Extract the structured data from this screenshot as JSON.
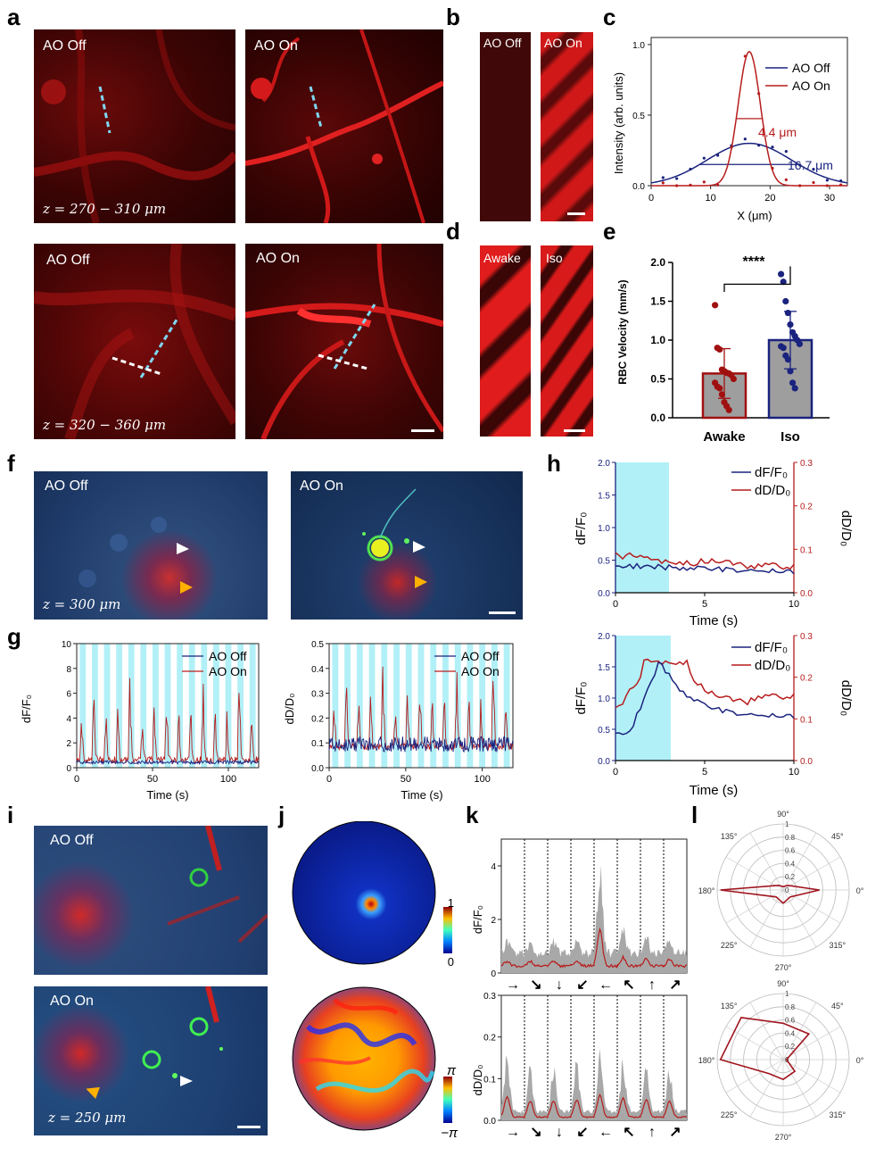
{
  "panels": {
    "a": {
      "letter": "a",
      "off_label": "AO Off",
      "on_label": "AO On",
      "z_top": "z = 270 − 310 μm",
      "z_bottom": "z = 320 − 360 μm"
    },
    "b": {
      "letter": "b",
      "off_label": "AO Off",
      "on_label": "AO On"
    },
    "c": {
      "letter": "c"
    },
    "d": {
      "letter": "d",
      "awake_label": "Awake",
      "iso_label": "Iso"
    },
    "e": {
      "letter": "e"
    },
    "f": {
      "letter": "f",
      "off_label": "AO Off",
      "on_label": "AO On",
      "z": "z = 300 μm"
    },
    "g": {
      "letter": "g"
    },
    "h": {
      "letter": "h"
    },
    "i": {
      "letter": "i",
      "off_label": "AO Off",
      "on_label": "AO On",
      "z": "z = 250 μm"
    },
    "j": {
      "letter": "j",
      "amp_max": "1",
      "amp_min": "0",
      "phase_max": "π",
      "phase_min": "−π"
    },
    "k": {
      "letter": "k",
      "arrows": [
        "→",
        "↘",
        "↓",
        "↙",
        "←",
        "↖",
        "↑",
        "↗"
      ]
    },
    "l": {
      "letter": "l"
    }
  },
  "colors": {
    "ao_off": "#1a237e",
    "ao_on": "#b71c1c",
    "stim": "#b2f0f7",
    "awake_bar": "#9e9e9e",
    "iso_bar": "#9e9e9e"
  },
  "chart_data": [
    {
      "id": "c",
      "type": "line",
      "xlabel": "X (μm)",
      "ylabel": "Intensity (arb. units)",
      "xlim": [
        0,
        33
      ],
      "ylim": [
        0,
        1.05
      ],
      "xticks": [
        "0",
        "10",
        "20",
        "30"
      ],
      "yticks": [
        "0.0",
        "0.5",
        "1.0"
      ],
      "legend": [
        "AO Off",
        "AO On"
      ],
      "annotations": [
        "4.4 μm",
        "16.7 μm"
      ],
      "series": [
        {
          "name": "AO Off",
          "fwhm": 16.7,
          "peak": 0.3,
          "center": 16.5
        },
        {
          "name": "AO On",
          "fwhm": 4.4,
          "peak": 0.95,
          "center": 16.5
        }
      ]
    },
    {
      "id": "e",
      "type": "bar",
      "ylabel": "RBC Velocity (mm/s)",
      "ylim": [
        0,
        2.0
      ],
      "yticks": [
        "0.0",
        "0.5",
        "1.0",
        "1.5",
        "2.0"
      ],
      "categories": [
        "Awake",
        "Iso"
      ],
      "values": [
        0.57,
        1.0
      ],
      "errors": [
        0.32,
        0.37
      ],
      "significance": "****",
      "points": {
        "Awake": [
          1.45,
          0.9,
          0.88,
          0.62,
          0.6,
          0.58,
          0.57,
          0.55,
          0.5,
          0.45,
          0.4,
          0.38,
          0.3,
          0.2,
          0.15,
          0.1
        ],
        "Iso": [
          1.85,
          1.75,
          1.5,
          1.35,
          1.2,
          1.1,
          1.05,
          1.0,
          0.95,
          0.92,
          0.9,
          0.8,
          0.75,
          0.6,
          0.45,
          0.38
        ]
      }
    },
    {
      "id": "g1",
      "type": "line",
      "xlabel": "Time (s)",
      "ylabel": "dF/F₀",
      "xlim": [
        0,
        120
      ],
      "ylim": [
        0,
        10
      ],
      "xticks": [
        "0",
        "50",
        "100"
      ],
      "yticks": [
        "0",
        "2",
        "4",
        "6",
        "8",
        "10"
      ],
      "legend": [
        "AO Off",
        "AO On"
      ]
    },
    {
      "id": "g2",
      "type": "line",
      "xlabel": "Time (s)",
      "ylabel": "dD/D₀",
      "xlim": [
        0,
        120
      ],
      "ylim": [
        0,
        0.5
      ],
      "xticks": [
        "0",
        "50",
        "100"
      ],
      "yticks": [
        "0.0",
        "0.1",
        "0.2",
        "0.3",
        "0.4",
        "0.5"
      ],
      "legend": [
        "AO Off",
        "AO On"
      ]
    },
    {
      "id": "h1",
      "type": "line",
      "xlabel": "Time (s)",
      "ylabel": "dF/F₀",
      "ylabel2": "dD/D₀",
      "xlim": [
        0,
        10
      ],
      "ylim": [
        0,
        2.0
      ],
      "ylim2": [
        0,
        0.3
      ],
      "xticks": [
        "0",
        "5",
        "10"
      ],
      "yticks": [
        "0.0",
        "0.5",
        "1.0",
        "1.5",
        "2.0"
      ],
      "yticks2": [
        "0.0",
        "0.1",
        "0.2",
        "0.3"
      ],
      "legend": [
        "dF/F₀",
        "dD/D₀"
      ]
    },
    {
      "id": "h2",
      "type": "line",
      "xlabel": "Time (s)",
      "ylabel": "dF/F₀",
      "ylabel2": "dD/D₀",
      "xlim": [
        0,
        10
      ],
      "ylim": [
        0,
        2.0
      ],
      "ylim2": [
        0,
        0.3
      ],
      "xticks": [
        "0",
        "5",
        "10"
      ],
      "yticks": [
        "0.0",
        "0.5",
        "1.0",
        "1.5",
        "2.0"
      ],
      "yticks2": [
        "0.0",
        "0.1",
        "0.2",
        "0.3"
      ],
      "legend": [
        "dF/F₀",
        "dD/D₀"
      ]
    },
    {
      "id": "k1",
      "type": "area",
      "ylabel": "dF/F₀",
      "ylim": [
        0,
        5
      ],
      "yticks": [
        "0",
        "2",
        "4"
      ]
    },
    {
      "id": "k2",
      "type": "area",
      "ylabel": "dD/D₀",
      "ylim": [
        0,
        0.3
      ],
      "yticks": [
        "0.0",
        "0.1",
        "0.2",
        "0.3"
      ]
    },
    {
      "id": "l",
      "type": "polar",
      "angles": [
        "0°",
        "45°",
        "90°",
        "135°",
        "180°",
        "225°",
        "270°",
        "315°"
      ],
      "rticks": [
        "0",
        "0.2",
        "0.4",
        "0.6",
        "0.8",
        "1"
      ],
      "series": [
        {
          "values": [
            0.55,
            0.1,
            0.05,
            0.1,
            0.95,
            0.15,
            0.2,
            0.15
          ]
        },
        {
          "values": [
            0.05,
            0.55,
            0.55,
            0.9,
            0.95,
            0.3,
            0.3,
            0.25
          ]
        }
      ]
    }
  ]
}
